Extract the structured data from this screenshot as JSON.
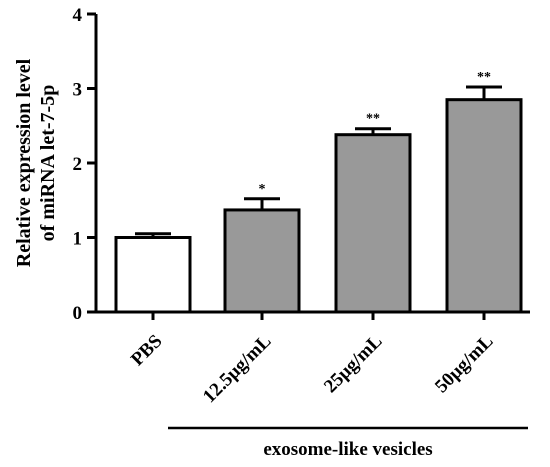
{
  "chart_data": {
    "type": "bar",
    "ylabel": "Relative expression level\nof miRNA let-7-5p",
    "ylim": [
      0,
      4
    ],
    "yticks": [
      0,
      1,
      2,
      3,
      4
    ],
    "categories": [
      "PBS",
      "12.5μg/mL",
      "25μg/mL",
      "50μg/mL"
    ],
    "values": [
      1.0,
      1.37,
      2.38,
      2.85
    ],
    "errors": [
      0.05,
      0.15,
      0.08,
      0.17
    ],
    "significance": [
      "",
      "*",
      "**",
      "**"
    ],
    "group_label": "exosome-like vesicles",
    "colors": {
      "control": "#ffffff",
      "treated": "#999999",
      "stroke": "#000000"
    },
    "grid": false,
    "legend": "none"
  }
}
